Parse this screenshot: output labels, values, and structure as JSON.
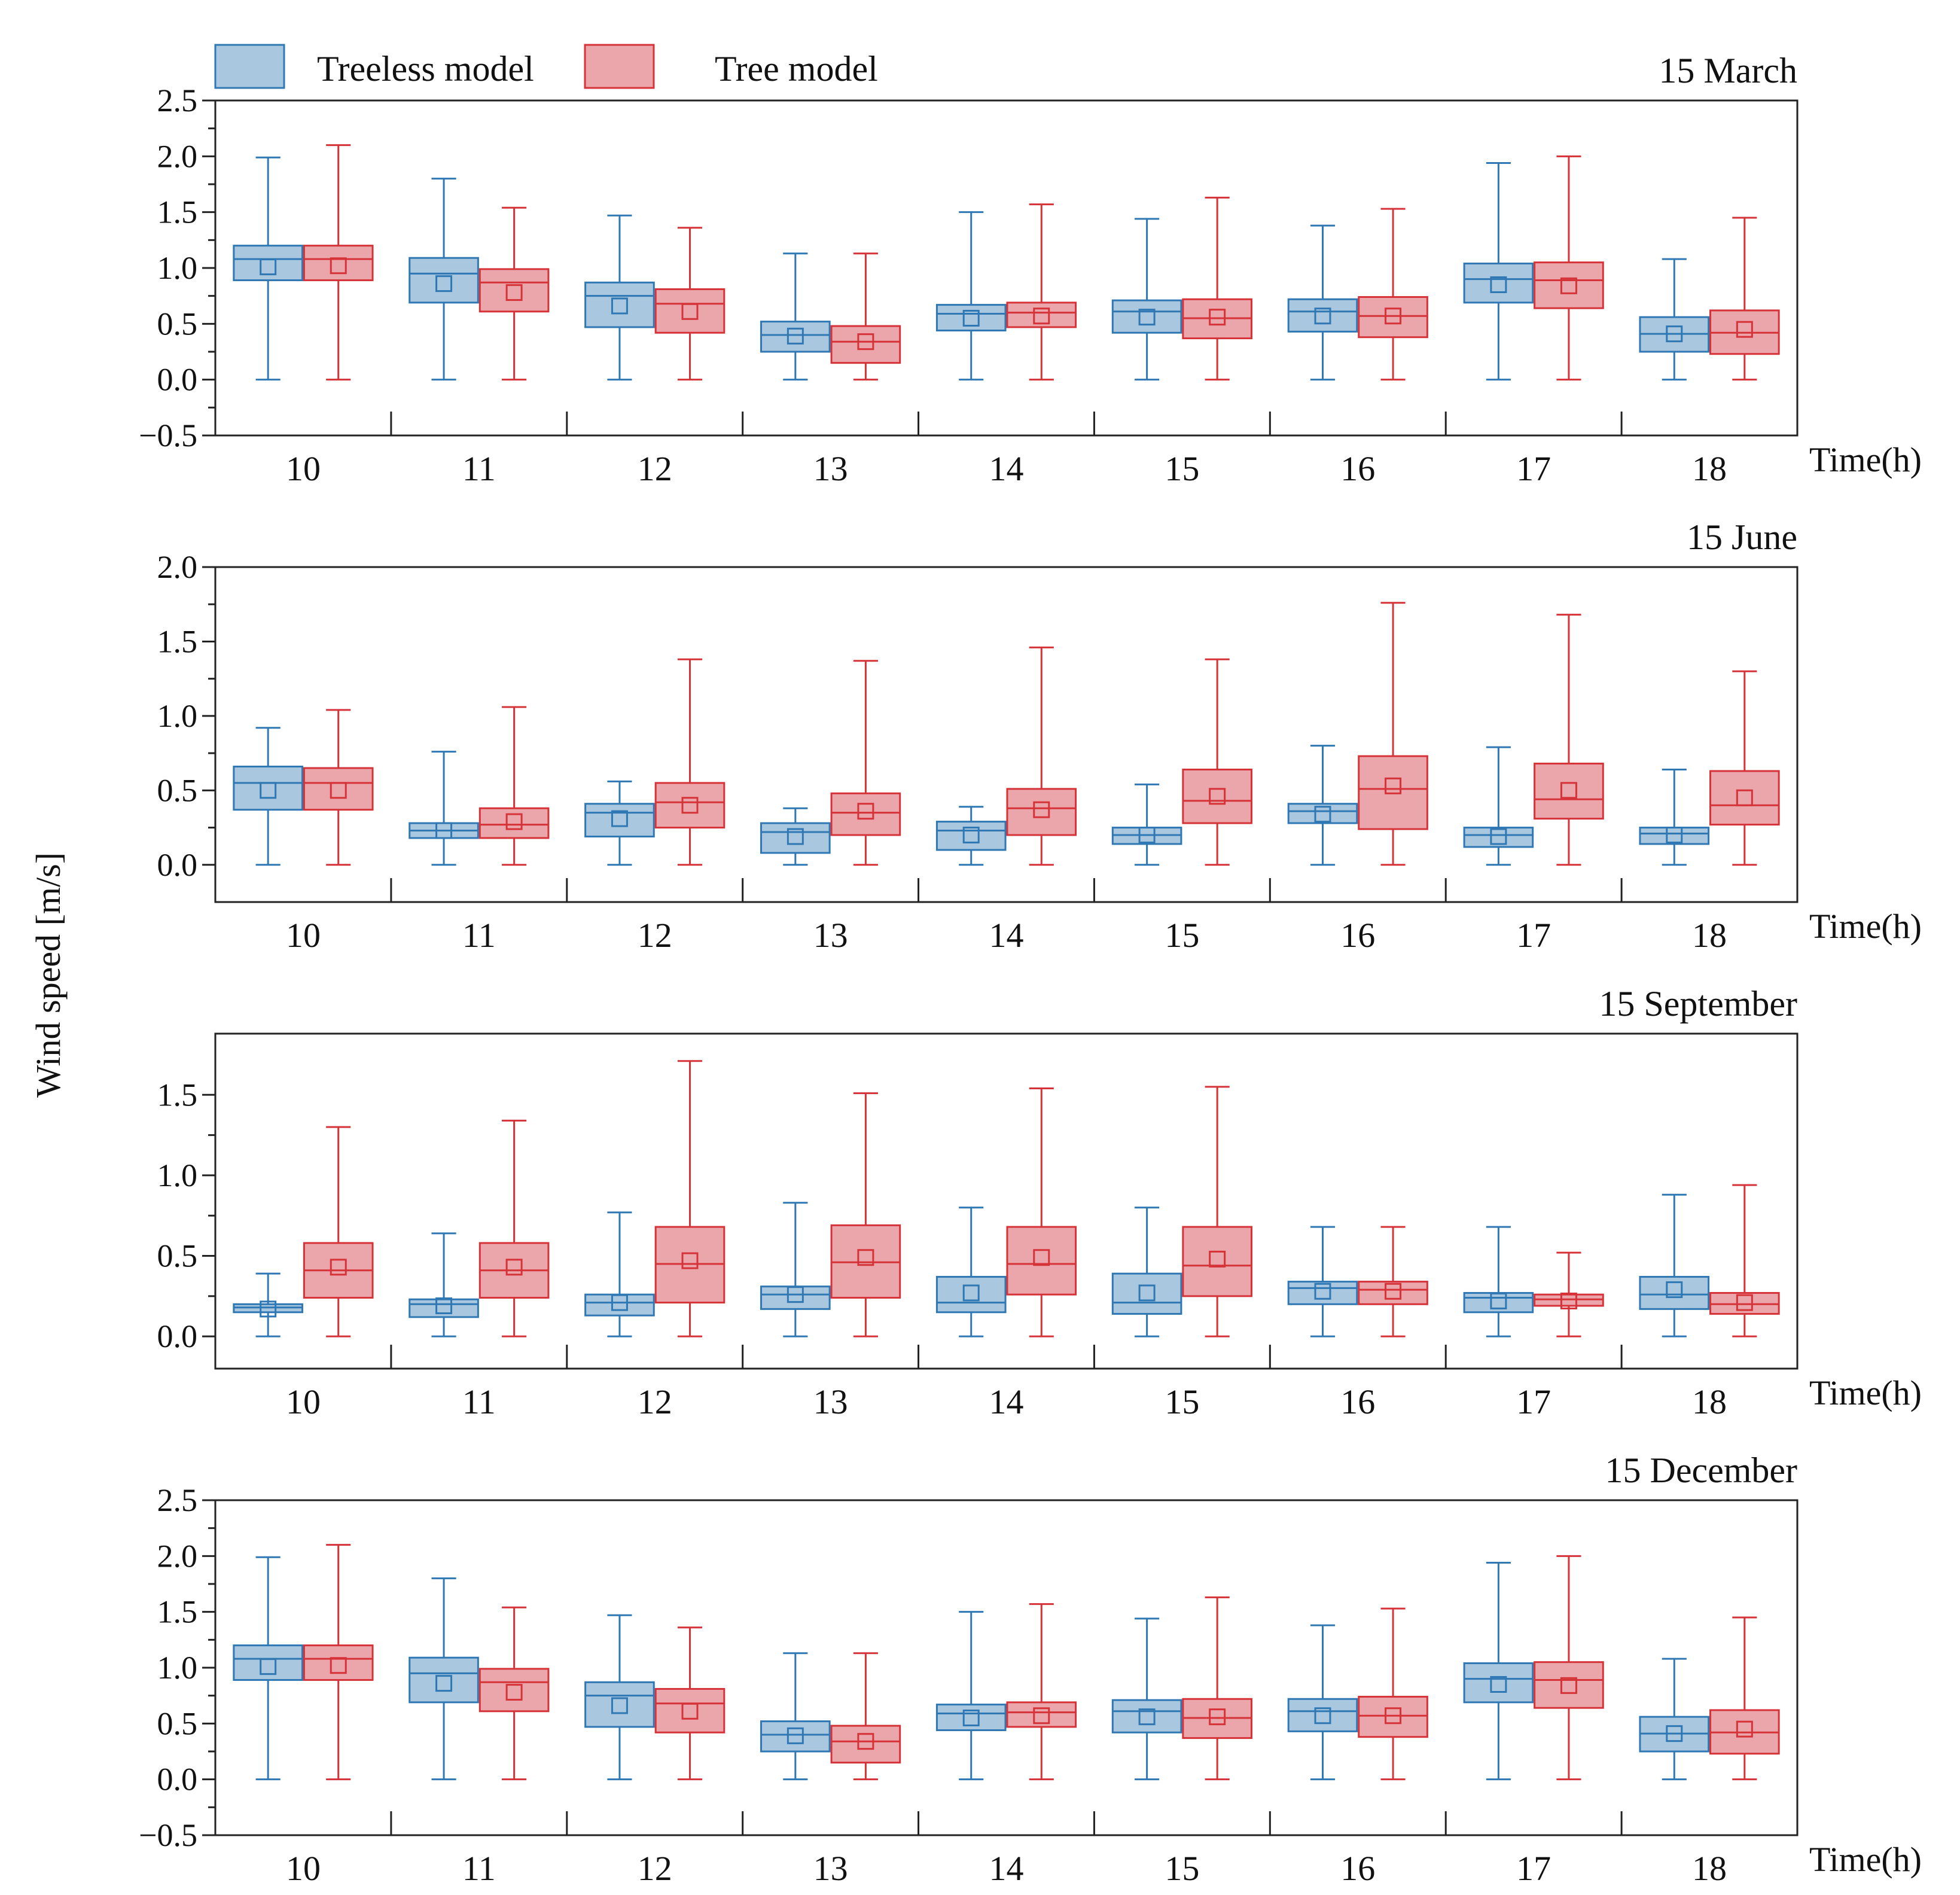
{
  "figure": {
    "ylabel": "Wind speed [m/s]",
    "xlabel": "Time(h)",
    "legend": [
      "Treeless model",
      "Tree model"
    ]
  },
  "colors": {
    "treeless_fill": "#a9c7df",
    "treeless_stroke": "#2f78b4",
    "tree_fill": "#eaa6aa",
    "tree_stroke": "#d63339",
    "axis": "#222222"
  },
  "chart_data": [
    {
      "type": "box",
      "title": "15 March",
      "categories": [
        "10",
        "11",
        "12",
        "13",
        "14",
        "15",
        "16",
        "17",
        "18"
      ],
      "ylim": [
        -0.5,
        2.5
      ],
      "yticks": [
        -0.5,
        0.0,
        0.5,
        1.0,
        1.5,
        2.0,
        2.5
      ],
      "ytick_labels": [
        "−0.5",
        "0.0",
        "0.5",
        "1.0",
        "1.5",
        "2.0",
        "2.5"
      ],
      "series": [
        {
          "name": "Treeless model",
          "boxes": [
            {
              "min": 0,
              "q1": 0.89,
              "median": 1.08,
              "q3": 1.2,
              "max": 1.99,
              "mean": 1.01
            },
            {
              "min": 0,
              "q1": 0.69,
              "median": 0.95,
              "q3": 1.09,
              "max": 1.8,
              "mean": 0.86
            },
            {
              "min": 0,
              "q1": 0.47,
              "median": 0.75,
              "q3": 0.87,
              "max": 1.47,
              "mean": 0.66
            },
            {
              "min": 0,
              "q1": 0.25,
              "median": 0.4,
              "q3": 0.52,
              "max": 1.13,
              "mean": 0.39
            },
            {
              "min": 0,
              "q1": 0.44,
              "median": 0.59,
              "q3": 0.67,
              "max": 1.5,
              "mean": 0.55
            },
            {
              "min": 0,
              "q1": 0.42,
              "median": 0.61,
              "q3": 0.71,
              "max": 1.44,
              "mean": 0.56
            },
            {
              "min": 0,
              "q1": 0.43,
              "median": 0.61,
              "q3": 0.72,
              "max": 1.38,
              "mean": 0.57
            },
            {
              "min": 0,
              "q1": 0.69,
              "median": 0.9,
              "q3": 1.04,
              "max": 1.94,
              "mean": 0.85
            },
            {
              "min": 0,
              "q1": 0.25,
              "median": 0.41,
              "q3": 0.56,
              "max": 1.08,
              "mean": 0.41
            }
          ]
        },
        {
          "name": "Tree model",
          "boxes": [
            {
              "min": 0,
              "q1": 0.89,
              "median": 1.08,
              "q3": 1.2,
              "max": 2.1,
              "mean": 1.02
            },
            {
              "min": 0,
              "q1": 0.61,
              "median": 0.87,
              "q3": 0.99,
              "max": 1.54,
              "mean": 0.78
            },
            {
              "min": 0,
              "q1": 0.42,
              "median": 0.68,
              "q3": 0.81,
              "max": 1.36,
              "mean": 0.61
            },
            {
              "min": 0,
              "q1": 0.15,
              "median": 0.34,
              "q3": 0.48,
              "max": 1.13,
              "mean": 0.34
            },
            {
              "min": 0,
              "q1": 0.47,
              "median": 0.6,
              "q3": 0.69,
              "max": 1.57,
              "mean": 0.57
            },
            {
              "min": 0,
              "q1": 0.37,
              "median": 0.55,
              "q3": 0.72,
              "max": 1.63,
              "mean": 0.56
            },
            {
              "min": 0,
              "q1": 0.38,
              "median": 0.57,
              "q3": 0.74,
              "max": 1.53,
              "mean": 0.57
            },
            {
              "min": 0,
              "q1": 0.64,
              "median": 0.89,
              "q3": 1.05,
              "max": 2.0,
              "mean": 0.84
            },
            {
              "min": 0,
              "q1": 0.23,
              "median": 0.42,
              "q3": 0.62,
              "max": 1.45,
              "mean": 0.45
            }
          ]
        }
      ]
    },
    {
      "type": "box",
      "title": "15 June",
      "categories": [
        "10",
        "11",
        "12",
        "13",
        "14",
        "15",
        "16",
        "17",
        "18"
      ],
      "ylim": [
        -0.25,
        2.0
      ],
      "yticks": [
        0.0,
        0.5,
        1.0,
        1.5,
        2.0
      ],
      "ytick_labels": [
        "0.0",
        "0.5",
        "1.0",
        "1.5",
        "2.0"
      ],
      "series": [
        {
          "name": "Treeless model",
          "boxes": [
            {
              "min": 0,
              "q1": 0.37,
              "median": 0.55,
              "q3": 0.66,
              "max": 0.92,
              "mean": 0.5
            },
            {
              "min": 0,
              "q1": 0.18,
              "median": 0.23,
              "q3": 0.28,
              "max": 0.76,
              "mean": 0.23
            },
            {
              "min": 0,
              "q1": 0.19,
              "median": 0.35,
              "q3": 0.41,
              "max": 0.56,
              "mean": 0.31
            },
            {
              "min": 0,
              "q1": 0.08,
              "median": 0.22,
              "q3": 0.28,
              "max": 0.38,
              "mean": 0.19
            },
            {
              "min": 0,
              "q1": 0.1,
              "median": 0.23,
              "q3": 0.29,
              "max": 0.39,
              "mean": 0.2
            },
            {
              "min": 0,
              "q1": 0.14,
              "median": 0.2,
              "q3": 0.25,
              "max": 0.54,
              "mean": 0.2
            },
            {
              "min": 0,
              "q1": 0.28,
              "median": 0.36,
              "q3": 0.41,
              "max": 0.8,
              "mean": 0.34
            },
            {
              "min": 0,
              "q1": 0.12,
              "median": 0.2,
              "q3": 0.25,
              "max": 0.79,
              "mean": 0.19
            },
            {
              "min": 0,
              "q1": 0.14,
              "median": 0.21,
              "q3": 0.25,
              "max": 0.64,
              "mean": 0.2
            }
          ]
        },
        {
          "name": "Tree model",
          "boxes": [
            {
              "min": 0,
              "q1": 0.37,
              "median": 0.55,
              "q3": 0.65,
              "max": 1.04,
              "mean": 0.5
            },
            {
              "min": 0,
              "q1": 0.18,
              "median": 0.27,
              "q3": 0.38,
              "max": 1.06,
              "mean": 0.29
            },
            {
              "min": 0,
              "q1": 0.25,
              "median": 0.42,
              "q3": 0.55,
              "max": 1.38,
              "mean": 0.4
            },
            {
              "min": 0,
              "q1": 0.2,
              "median": 0.35,
              "q3": 0.48,
              "max": 1.37,
              "mean": 0.36
            },
            {
              "min": 0,
              "q1": 0.2,
              "median": 0.38,
              "q3": 0.51,
              "max": 1.46,
              "mean": 0.37
            },
            {
              "min": 0,
              "q1": 0.28,
              "median": 0.43,
              "q3": 0.64,
              "max": 1.38,
              "mean": 0.46
            },
            {
              "min": 0,
              "q1": 0.24,
              "median": 0.51,
              "q3": 0.73,
              "max": 1.76,
              "mean": 0.53
            },
            {
              "min": 0,
              "q1": 0.31,
              "median": 0.44,
              "q3": 0.68,
              "max": 1.68,
              "mean": 0.5
            },
            {
              "min": 0,
              "q1": 0.27,
              "median": 0.4,
              "q3": 0.63,
              "max": 1.3,
              "mean": 0.45
            }
          ]
        }
      ]
    },
    {
      "type": "box",
      "title": "15 September",
      "categories": [
        "10",
        "11",
        "12",
        "13",
        "14",
        "15",
        "16",
        "17",
        "18"
      ],
      "ylim": [
        -0.2,
        1.88
      ],
      "yticks": [
        0.0,
        0.5,
        1.0,
        1.5
      ],
      "ytick_labels": [
        "0.0",
        "0.5",
        "1.0",
        "1.5"
      ],
      "series": [
        {
          "name": "Treeless model",
          "boxes": [
            {
              "min": 0,
              "q1": 0.15,
              "median": 0.18,
              "q3": 0.2,
              "max": 0.39,
              "mean": 0.17
            },
            {
              "min": 0,
              "q1": 0.12,
              "median": 0.2,
              "q3": 0.23,
              "max": 0.64,
              "mean": 0.19
            },
            {
              "min": 0,
              "q1": 0.13,
              "median": 0.21,
              "q3": 0.26,
              "max": 0.77,
              "mean": 0.21
            },
            {
              "min": 0,
              "q1": 0.17,
              "median": 0.26,
              "q3": 0.31,
              "max": 0.83,
              "mean": 0.26
            },
            {
              "min": 0,
              "q1": 0.15,
              "median": 0.21,
              "q3": 0.37,
              "max": 0.8,
              "mean": 0.27
            },
            {
              "min": 0,
              "q1": 0.14,
              "median": 0.21,
              "q3": 0.39,
              "max": 0.8,
              "mean": 0.27
            },
            {
              "min": 0,
              "q1": 0.2,
              "median": 0.3,
              "q3": 0.34,
              "max": 0.68,
              "mean": 0.28
            },
            {
              "min": 0,
              "q1": 0.15,
              "median": 0.24,
              "q3": 0.27,
              "max": 0.68,
              "mean": 0.22
            },
            {
              "min": 0,
              "q1": 0.17,
              "median": 0.26,
              "q3": 0.37,
              "max": 0.88,
              "mean": 0.29
            }
          ]
        },
        {
          "name": "Tree model",
          "boxes": [
            {
              "min": 0,
              "q1": 0.24,
              "median": 0.41,
              "q3": 0.58,
              "max": 1.3,
              "mean": 0.43
            },
            {
              "min": 0,
              "q1": 0.24,
              "median": 0.41,
              "q3": 0.58,
              "max": 1.34,
              "mean": 0.43
            },
            {
              "min": 0,
              "q1": 0.21,
              "median": 0.45,
              "q3": 0.68,
              "max": 1.71,
              "mean": 0.47
            },
            {
              "min": 0,
              "q1": 0.24,
              "median": 0.46,
              "q3": 0.69,
              "max": 1.51,
              "mean": 0.49
            },
            {
              "min": 0,
              "q1": 0.26,
              "median": 0.45,
              "q3": 0.68,
              "max": 1.54,
              "mean": 0.49
            },
            {
              "min": 0,
              "q1": 0.25,
              "median": 0.44,
              "q3": 0.68,
              "max": 1.55,
              "mean": 0.48
            },
            {
              "min": 0,
              "q1": 0.2,
              "median": 0.29,
              "q3": 0.34,
              "max": 0.68,
              "mean": 0.28
            },
            {
              "min": 0,
              "q1": 0.19,
              "median": 0.23,
              "q3": 0.26,
              "max": 0.52,
              "mean": 0.22
            },
            {
              "min": 0,
              "q1": 0.14,
              "median": 0.2,
              "q3": 0.27,
              "max": 0.94,
              "mean": 0.21
            }
          ]
        }
      ]
    },
    {
      "type": "box",
      "title": "15 December",
      "categories": [
        "10",
        "11",
        "12",
        "13",
        "14",
        "15",
        "16",
        "17",
        "18"
      ],
      "ylim": [
        -0.5,
        2.5
      ],
      "yticks": [
        -0.5,
        0.0,
        0.5,
        1.0,
        1.5,
        2.0,
        2.5
      ],
      "ytick_labels": [
        "−0.5",
        "0.0",
        "0.5",
        "1.0",
        "1.5",
        "2.0",
        "2.5"
      ],
      "series": [
        {
          "name": "Treeless model",
          "boxes": [
            {
              "min": 0,
              "q1": 0.89,
              "median": 1.08,
              "q3": 1.2,
              "max": 1.99,
              "mean": 1.01
            },
            {
              "min": 0,
              "q1": 0.69,
              "median": 0.95,
              "q3": 1.09,
              "max": 1.8,
              "mean": 0.86
            },
            {
              "min": 0,
              "q1": 0.47,
              "median": 0.75,
              "q3": 0.87,
              "max": 1.47,
              "mean": 0.66
            },
            {
              "min": 0,
              "q1": 0.25,
              "median": 0.4,
              "q3": 0.52,
              "max": 1.13,
              "mean": 0.39
            },
            {
              "min": 0,
              "q1": 0.44,
              "median": 0.59,
              "q3": 0.67,
              "max": 1.5,
              "mean": 0.55
            },
            {
              "min": 0,
              "q1": 0.42,
              "median": 0.61,
              "q3": 0.71,
              "max": 1.44,
              "mean": 0.56
            },
            {
              "min": 0,
              "q1": 0.43,
              "median": 0.61,
              "q3": 0.72,
              "max": 1.38,
              "mean": 0.57
            },
            {
              "min": 0,
              "q1": 0.69,
              "median": 0.9,
              "q3": 1.04,
              "max": 1.94,
              "mean": 0.85
            },
            {
              "min": 0,
              "q1": 0.25,
              "median": 0.41,
              "q3": 0.56,
              "max": 1.08,
              "mean": 0.41
            }
          ]
        },
        {
          "name": "Tree model",
          "boxes": [
            {
              "min": 0,
              "q1": 0.89,
              "median": 1.08,
              "q3": 1.2,
              "max": 2.1,
              "mean": 1.02
            },
            {
              "min": 0,
              "q1": 0.61,
              "median": 0.87,
              "q3": 0.99,
              "max": 1.54,
              "mean": 0.78
            },
            {
              "min": 0,
              "q1": 0.42,
              "median": 0.68,
              "q3": 0.81,
              "max": 1.36,
              "mean": 0.61
            },
            {
              "min": 0,
              "q1": 0.15,
              "median": 0.34,
              "q3": 0.48,
              "max": 1.13,
              "mean": 0.34
            },
            {
              "min": 0,
              "q1": 0.47,
              "median": 0.6,
              "q3": 0.69,
              "max": 1.57,
              "mean": 0.57
            },
            {
              "min": 0,
              "q1": 0.37,
              "median": 0.55,
              "q3": 0.72,
              "max": 1.63,
              "mean": 0.56
            },
            {
              "min": 0,
              "q1": 0.38,
              "median": 0.57,
              "q3": 0.74,
              "max": 1.53,
              "mean": 0.57
            },
            {
              "min": 0,
              "q1": 0.64,
              "median": 0.89,
              "q3": 1.05,
              "max": 2.0,
              "mean": 0.84
            },
            {
              "min": 0,
              "q1": 0.23,
              "median": 0.42,
              "q3": 0.62,
              "max": 1.45,
              "mean": 0.45
            }
          ]
        }
      ]
    }
  ]
}
